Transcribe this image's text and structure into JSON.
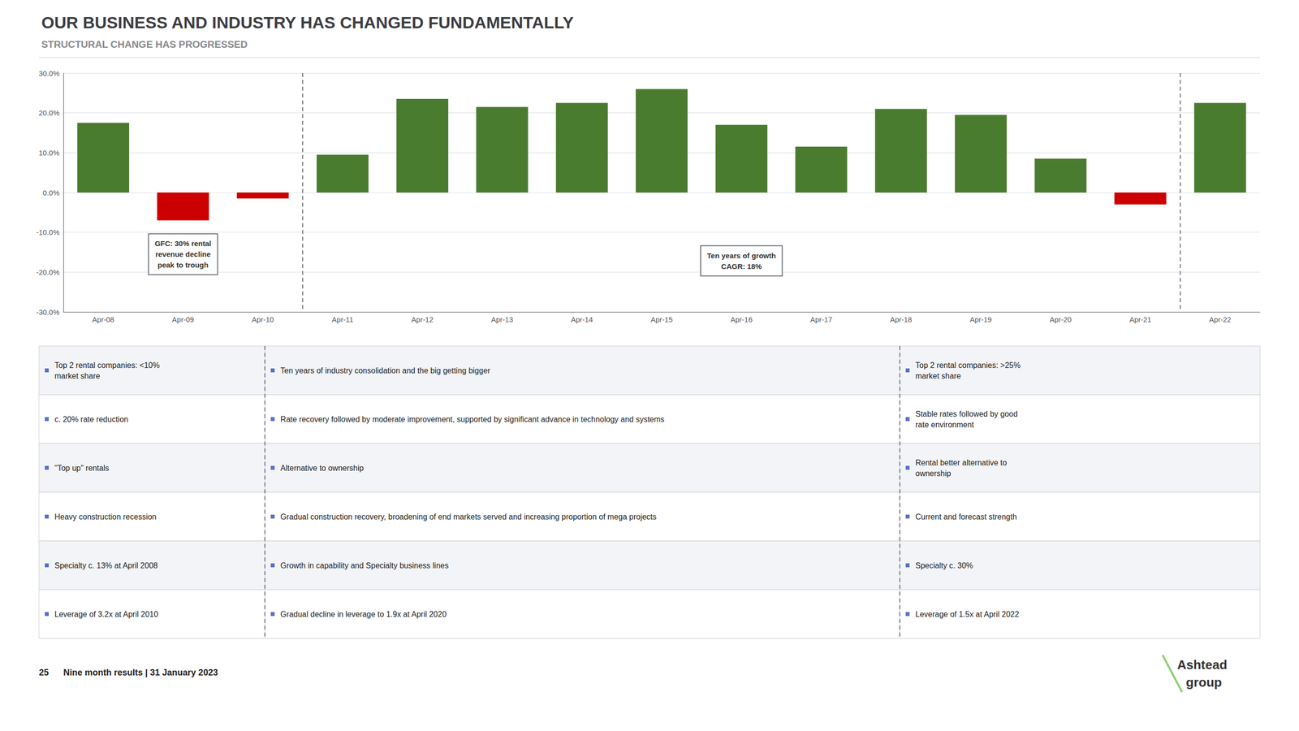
{
  "chart_data": {
    "type": "bar",
    "title": "OUR BUSINESS AND INDUSTRY HAS CHANGED FUNDAMENTALLY",
    "subtitle": "STRUCTURAL CHANGE HAS PROGRESSED",
    "categories": [
      "Apr-08",
      "Apr-09",
      "Apr-10",
      "Apr-11",
      "Apr-12",
      "Apr-13",
      "Apr-14",
      "Apr-15",
      "Apr-16",
      "Apr-17",
      "Apr-18",
      "Apr-19",
      "Apr-20",
      "Apr-21",
      "Apr-22"
    ],
    "values": [
      17.5,
      -7.0,
      -1.5,
      9.5,
      23.5,
      21.5,
      22.5,
      26.0,
      17.0,
      11.5,
      21.0,
      19.5,
      8.5,
      -3.0,
      22.5
    ],
    "colors": [
      "#4a7c2f",
      "#cc0000",
      "#cc0000",
      "#4a7c2f",
      "#4a7c2f",
      "#4a7c2f",
      "#4a7c2f",
      "#4a7c2f",
      "#4a7c2f",
      "#4a7c2f",
      "#4a7c2f",
      "#4a7c2f",
      "#4a7c2f",
      "#cc0000",
      "#4a7c2f"
    ],
    "ylim": [
      -30,
      30
    ],
    "yticks": [
      {
        "value": -30,
        "label": "-30.0%"
      },
      {
        "value": -20,
        "label": "-20.0%"
      },
      {
        "value": -10,
        "label": "-10.0%"
      },
      {
        "value": 0,
        "label": "0.0%"
      },
      {
        "value": 10,
        "label": "10.0%"
      },
      {
        "value": 20,
        "label": "20.0%"
      },
      {
        "value": 30,
        "label": "30.0%"
      }
    ],
    "grid": true,
    "annotations": [
      {
        "text": "GFC: 30% rental\nrevenue decline\npeak to trough",
        "x": "Apr-09",
        "y": -10.5
      },
      {
        "text": "Ten years of growth\nCAGR: 18%",
        "x": "Apr-16",
        "y": -13.5
      }
    ],
    "table_rows": [
      [
        "Top 2 rental companies: <10%\nmarket share",
        "Ten years of industry consolidation and the big getting bigger",
        "Top 2 rental companies: >25%\nmarket share"
      ],
      [
        "c. 20% rate reduction",
        "Rate recovery followed by moderate improvement, supported by significant advance in technology and systems",
        "Stable rates followed by good\nrate environment"
      ],
      [
        "\"Top up\" rentals",
        "Alternative to ownership",
        "Rental better alternative to\nownership"
      ],
      [
        "Heavy construction recession",
        "Gradual construction recovery, broadening of end markets served and increasing proportion of mega projects",
        "Current and forecast strength"
      ],
      [
        "Specialty c. 13% at April 2008",
        "Growth in capability and Specialty business lines",
        "Specialty c. 30%"
      ],
      [
        "Leverage of 3.2x at April 2010",
        "Gradual decline in leverage to 1.9x at April 2020",
        "Leverage of 1.5x at April 2022"
      ]
    ],
    "footer": [
      "25",
      "Nine month results | 31 January 2023"
    ],
    "logo": [
      "Ashtead",
      "group"
    ]
  }
}
